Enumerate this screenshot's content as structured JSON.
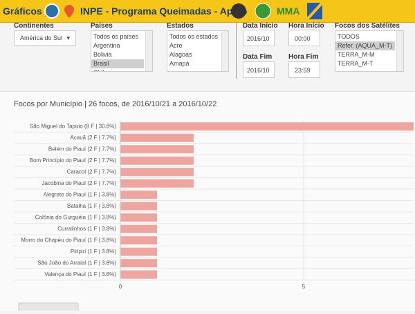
{
  "header": {
    "title": "Gráficos |",
    "subtitle": "INPE - Programa Queimadas - Apoio",
    "partner": "MMA"
  },
  "filters": {
    "continent": {
      "label": "Continentes",
      "value": "América do Sul"
    },
    "countries": {
      "label": "Países",
      "options": [
        "Todos os países",
        "Argentina",
        "Bolivia",
        "Brasil",
        "Chile"
      ],
      "selected": 3
    },
    "states": {
      "label": "Estados",
      "options": [
        "Todos os estados",
        "Acre",
        "Alagoas",
        "Amapá"
      ]
    },
    "date_start": {
      "label": "Data Início",
      "value": "2016/10"
    },
    "hour_start": {
      "label": "Hora Início",
      "value": "00:00"
    },
    "date_end": {
      "label": "Data Fim",
      "value": "2016/10"
    },
    "hour_end": {
      "label": "Hora Fim",
      "value": "23:59"
    },
    "satellites": {
      "label": "Focos dos Satélites",
      "options": [
        "TODOS",
        "Refer. (AQUA_M-T)",
        "TERRA_M-M",
        "TERRA_M-T"
      ],
      "selected": 1
    }
  },
  "chart_data": {
    "type": "bar",
    "orientation": "horizontal",
    "title": "Focos por Município | 26 focos, de 2016/10/21 a 2016/10/22",
    "categories": [
      "São Miguel do Tapuio (8 F | 30.8%)",
      "Acauã (2 F | 7.7%)",
      "Belém do Piauí (2 F | 7.7%)",
      "Bom Princípio do Piauí (2 F | 7.7%)",
      "Caracol (2 F | 7.7%)",
      "Jacobina do Piauí (2 F | 7.7%)",
      "Alegrete do Piauí (1 F | 3.8%)",
      "Batalha (1 F | 3.8%)",
      "Colônia do Gurguéia (1 F | 3.8%)",
      "Curralinhos (1 F | 3.8%)",
      "Morro do Chapéu do Piauí (1 F | 3.8%)",
      "Piripiri (1 F | 3.8%)",
      "São João do Arraial (1 F | 3.8%)",
      "Valença do Piauí (1 F | 3.8%)"
    ],
    "values": [
      8,
      2,
      2,
      2,
      2,
      2,
      1,
      1,
      1,
      1,
      1,
      1,
      1,
      1
    ],
    "color": "#eea59f",
    "xlim": [
      0,
      8
    ],
    "xticks": [
      0,
      5
    ],
    "grid": true
  }
}
